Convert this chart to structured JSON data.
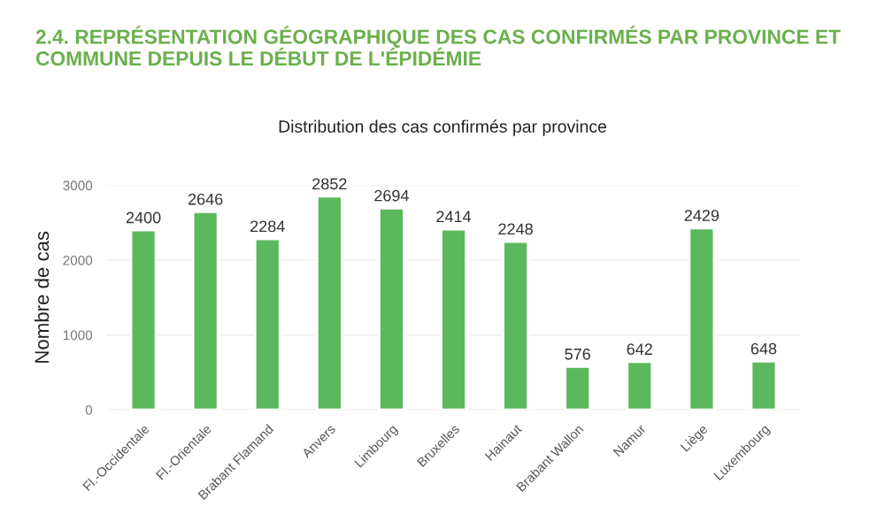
{
  "chart_data": {
    "type": "bar",
    "title": "2.4. REPRÉSENTATION GÉOGRAPHIQUE DES CAS CONFIRMÉS PAR PROVINCE ET COMMUNE DEPUIS LE DÉBUT DE L'ÉPIDÉMIE",
    "subtitle": "Distribution des cas confirmés par province",
    "ylabel": "Nombre de cas",
    "categories": [
      "Fl.-Occidentale",
      "Fl.-Orientale",
      "Brabant Flamand",
      "Anvers",
      "Limbourg",
      "Bruxelles",
      "Hainaut",
      "Brabant Wallon",
      "Namur",
      "Liège",
      "Luxembourg"
    ],
    "values": [
      2400,
      2646,
      2284,
      2852,
      2694,
      2414,
      2248,
      576,
      642,
      2429,
      648
    ],
    "color": "#5cb85c",
    "ylim": [
      0,
      3000
    ],
    "yticks": [
      0,
      1000,
      2000,
      3000
    ],
    "grid": "y",
    "data_labels": true
  }
}
